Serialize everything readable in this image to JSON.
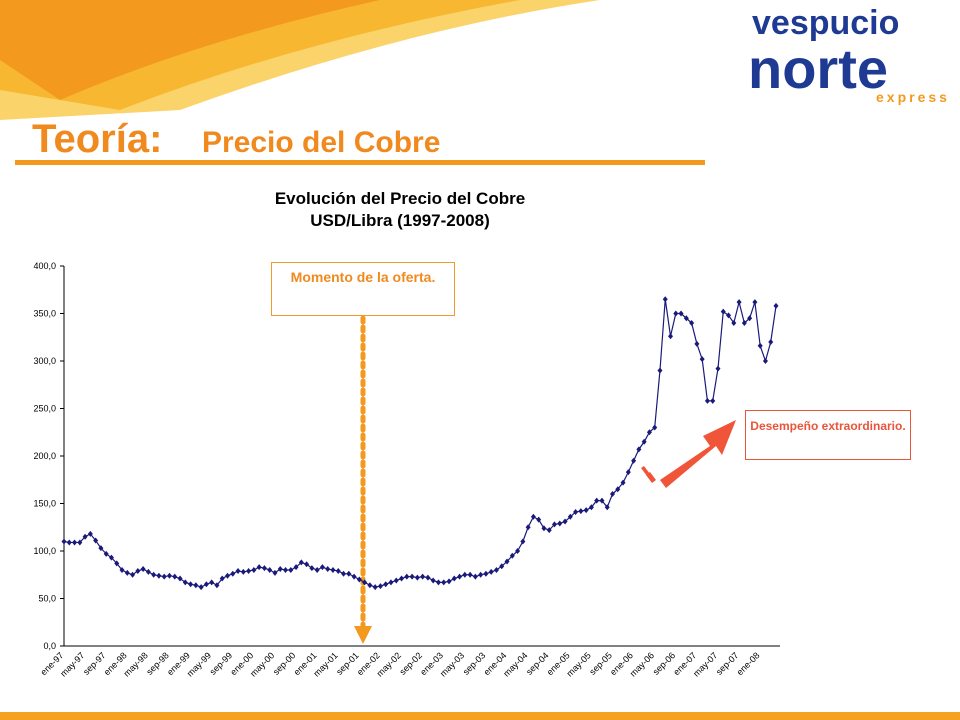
{
  "logo": {
    "top": "vespucio",
    "main": "norte",
    "sub": "express"
  },
  "slide_title": {
    "lead": "Teoría:",
    "rest": "Precio del Cobre"
  },
  "chart_data": {
    "type": "line",
    "title": "Evolución del Precio del Cobre",
    "subtitle": "USD/Libra (1997-2008)",
    "annotations": [
      "Momento de la oferta.",
      "Desempeño extraordinario."
    ],
    "color": "#1a1a7a",
    "categories": [
      "ene-97",
      null,
      null,
      null,
      "may-97",
      null,
      null,
      null,
      "sep-97",
      null,
      null,
      null,
      "ene-98",
      null,
      null,
      null,
      "may-98",
      null,
      null,
      null,
      "sep-98",
      null,
      null,
      null,
      "ene-99",
      null,
      null,
      null,
      "may-99",
      null,
      null,
      null,
      "sep-99",
      null,
      null,
      null,
      "ene-00",
      null,
      null,
      null,
      "may-00",
      null,
      null,
      null,
      "sep-00",
      null,
      null,
      null,
      "ene-01",
      null,
      null,
      null,
      "may-01",
      null,
      null,
      null,
      "sep-01",
      null,
      null,
      null,
      "ene-02",
      null,
      null,
      null,
      "may-02",
      null,
      null,
      null,
      "sep-02",
      null,
      null,
      null,
      "ene-03",
      null,
      null,
      null,
      "may-03",
      null,
      null,
      null,
      "sep-03",
      null,
      null,
      null,
      "ene-04",
      null,
      null,
      null,
      "may-04",
      null,
      null,
      null,
      "sep-04",
      null,
      null,
      null,
      "ene-05",
      null,
      null,
      null,
      "may-05",
      null,
      null,
      null,
      "sep-05",
      null,
      null,
      null,
      "ene-06",
      null,
      null,
      null,
      "may-06",
      null,
      null,
      null,
      "sep-06",
      null,
      null,
      null,
      "ene-07",
      null,
      null,
      null,
      "may-07",
      null,
      null,
      null,
      "sep-07",
      null,
      null,
      null,
      "ene-08",
      null,
      null,
      null
    ],
    "values": [
      110,
      109,
      109,
      109,
      115,
      118,
      111,
      103,
      97,
      93,
      87,
      80,
      77,
      75,
      79,
      81,
      78,
      75,
      74,
      73,
      74,
      73,
      71,
      67,
      65,
      64,
      62,
      65,
      67,
      64,
      71,
      74,
      76,
      79,
      78,
      79,
      80,
      83,
      82,
      80,
      77,
      81,
      80,
      80,
      83,
      88,
      86,
      82,
      80,
      83,
      81,
      80,
      79,
      76,
      76,
      73,
      70,
      67,
      64,
      62,
      63,
      65,
      67,
      69,
      71,
      73,
      73,
      72,
      73,
      72,
      69,
      67,
      67,
      68,
      71,
      73,
      75,
      75,
      73,
      75,
      76,
      78,
      80,
      84,
      89,
      95,
      100,
      110,
      125,
      136,
      133,
      124,
      122,
      128,
      129,
      131,
      136,
      141,
      142,
      143,
      146,
      153,
      153,
      146,
      160,
      165,
      172,
      183,
      195,
      207,
      215,
      225,
      230,
      290,
      365,
      326,
      350,
      350,
      345,
      340,
      318,
      302,
      258,
      258,
      292,
      352,
      348,
      340,
      362,
      340,
      345,
      362,
      316,
      300,
      320,
      358
    ],
    "ylim": [
      0,
      400
    ],
    "yticks": [
      {
        "value": 0,
        "label": "0,0"
      },
      {
        "value": 50,
        "label": "50,0"
      },
      {
        "value": 100,
        "label": "100,0"
      },
      {
        "value": 150,
        "label": "150,0"
      },
      {
        "value": 200,
        "label": "200,0"
      },
      {
        "value": 250,
        "label": "250,0"
      },
      {
        "value": 300,
        "label": "300,0"
      },
      {
        "value": 350,
        "label": "350,0"
      },
      {
        "value": 400,
        "label": "400,0"
      }
    ]
  }
}
